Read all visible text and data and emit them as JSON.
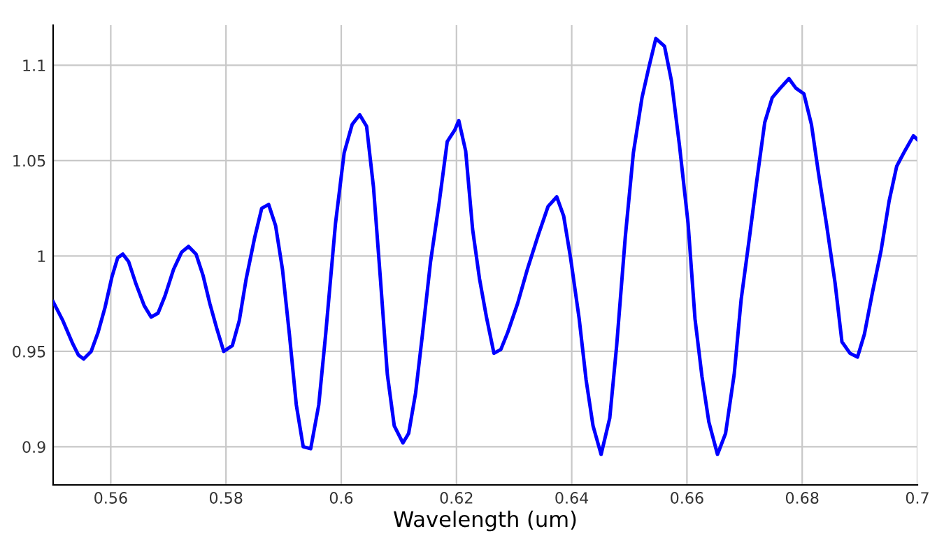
{
  "chart_data": {
    "type": "line",
    "xlabel": "Wavelength (um)",
    "xlim": [
      0.55,
      0.7
    ],
    "ylim": [
      0.88,
      1.121
    ],
    "xticks": [
      0.56,
      0.58,
      {
        "value": 0.6,
        "label": "0.6"
      },
      0.62,
      0.64,
      0.66,
      0.68,
      {
        "value": 0.7,
        "label": "0.7"
      }
    ],
    "yticks": [
      0.9,
      0.95,
      1,
      1.05,
      1.1
    ],
    "grid": true,
    "line_style": "solid",
    "marker": "none",
    "series": [
      {
        "color": "#0000ff",
        "x": [
          0.55,
          0.5517,
          0.5534,
          0.5544,
          0.5553,
          0.5566,
          0.5578,
          0.559,
          0.5602,
          0.5612,
          0.5621,
          0.5631,
          0.5643,
          0.5658,
          0.567,
          0.5682,
          0.5694,
          0.5709,
          0.5723,
          0.5735,
          0.5748,
          0.576,
          0.5772,
          0.5784,
          0.5796,
          0.5811,
          0.5823,
          0.5835,
          0.585,
          0.5862,
          0.5874,
          0.5886,
          0.5898,
          0.591,
          0.5922,
          0.5934,
          0.5947,
          0.5961,
          0.5973,
          0.599,
          0.6005,
          0.6019,
          0.6032,
          0.6044,
          0.6056,
          0.6068,
          0.608,
          0.6092,
          0.6107,
          0.6117,
          0.6129,
          0.6141,
          0.6155,
          0.617,
          0.6184,
          0.6197,
          0.6204,
          0.6216,
          0.6228,
          0.624,
          0.6252,
          0.6265,
          0.6277,
          0.6289,
          0.6306,
          0.6323,
          0.6342,
          0.6359,
          0.6374,
          0.6386,
          0.6398,
          0.6413,
          0.6425,
          0.6437,
          0.6451,
          0.6466,
          0.6478,
          0.6493,
          0.6507,
          0.6522,
          0.6534,
          0.6546,
          0.6561,
          0.6573,
          0.6587,
          0.6602,
          0.6614,
          0.6626,
          0.6638,
          0.6653,
          0.6667,
          0.6682,
          0.6694,
          0.6709,
          0.6721,
          0.6735,
          0.6748,
          0.6762,
          0.6777,
          0.6789,
          0.6803,
          0.6816,
          0.6828,
          0.6842,
          0.6857,
          0.6869,
          0.6883,
          0.6896,
          0.6908,
          0.6922,
          0.6937,
          0.6951,
          0.6964,
          0.6978,
          0.6993,
          0.7
        ],
        "values": [
          0.976,
          0.966,
          0.954,
          0.948,
          0.946,
          0.95,
          0.96,
          0.973,
          0.989,
          0.999,
          1.001,
          0.997,
          0.986,
          0.974,
          0.968,
          0.97,
          0.979,
          0.993,
          1.002,
          1.005,
          1.001,
          0.99,
          0.975,
          0.962,
          0.95,
          0.953,
          0.966,
          0.988,
          1.01,
          1.025,
          1.027,
          1.016,
          0.993,
          0.959,
          0.922,
          0.9,
          0.899,
          0.922,
          0.959,
          1.017,
          1.054,
          1.069,
          1.074,
          1.068,
          1.036,
          0.988,
          0.938,
          0.911,
          0.902,
          0.907,
          0.928,
          0.959,
          0.997,
          1.028,
          1.06,
          1.066,
          1.071,
          1.055,
          1.014,
          0.988,
          0.968,
          0.949,
          0.951,
          0.96,
          0.975,
          0.993,
          1.011,
          1.026,
          1.031,
          1.021,
          0.999,
          0.967,
          0.935,
          0.911,
          0.896,
          0.915,
          0.953,
          1.01,
          1.054,
          1.083,
          1.099,
          1.114,
          1.11,
          1.092,
          1.058,
          1.017,
          0.967,
          0.937,
          0.913,
          0.896,
          0.907,
          0.938,
          0.977,
          1.011,
          1.039,
          1.07,
          1.083,
          1.088,
          1.093,
          1.088,
          1.085,
          1.069,
          1.044,
          1.017,
          0.986,
          0.955,
          0.949,
          0.947,
          0.959,
          0.981,
          1.003,
          1.029,
          1.047,
          1.055,
          1.063,
          1.061
        ]
      }
    ]
  }
}
